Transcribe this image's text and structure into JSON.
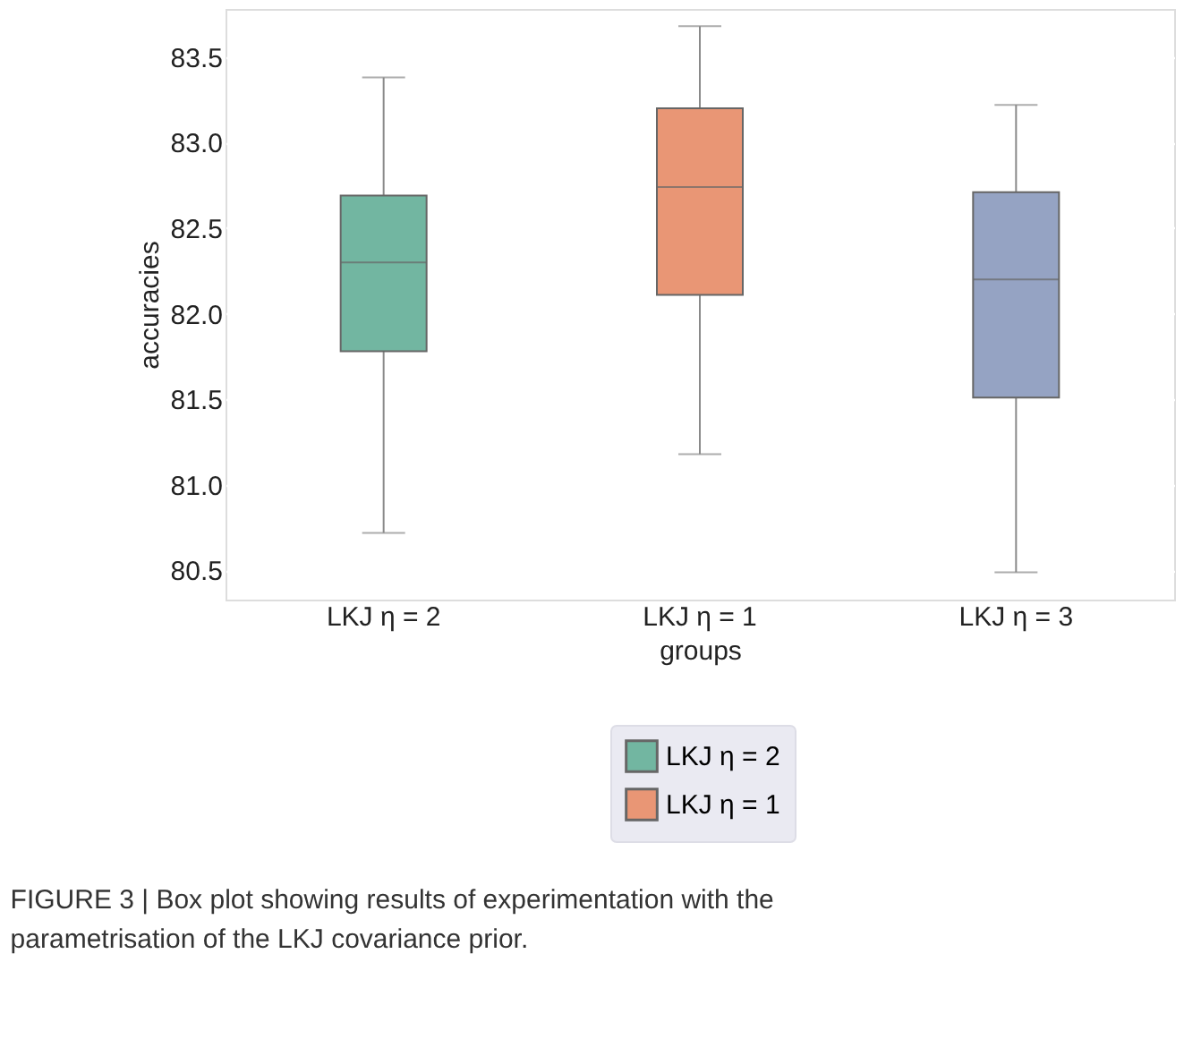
{
  "chart_data": {
    "type": "box",
    "xlabel": "groups",
    "ylabel": "accuracies",
    "categories": [
      "LKJ η = 2",
      "LKJ η = 1",
      "LKJ η = 3"
    ],
    "series": [
      {
        "name": "LKJ η = 2",
        "color": "#72b6a1",
        "boxes": [
          {
            "low": 80.72,
            "q1": 81.78,
            "median": 82.3,
            "q3": 82.69,
            "high": 83.38
          },
          null,
          null
        ]
      },
      {
        "name": "LKJ η = 1",
        "color": "#e99675",
        "boxes": [
          null,
          {
            "low": 81.18,
            "q1": 82.11,
            "median": 82.74,
            "q3": 83.2,
            "high": 83.68
          },
          null
        ]
      },
      {
        "color": "#95a3c3",
        "boxes": [
          null,
          null,
          {
            "low": 80.49,
            "q1": 81.51,
            "median": 82.2,
            "q3": 82.71,
            "high": 83.22
          }
        ]
      }
    ],
    "ylim": [
      80.33,
      83.78
    ],
    "yticks": [
      80.5,
      {
        "value": 81,
        "label": "81.0"
      },
      81.5,
      {
        "value": 82,
        "label": "82.0"
      },
      82.5,
      {
        "value": 83,
        "label": "83.0"
      },
      83.5
    ],
    "grid": "y",
    "legend": "bottom",
    "annotations": [
      "FIGURE 3 | Box plot showing results of experimentation with the parametrisation of the LKJ covariance prior."
    ]
  }
}
